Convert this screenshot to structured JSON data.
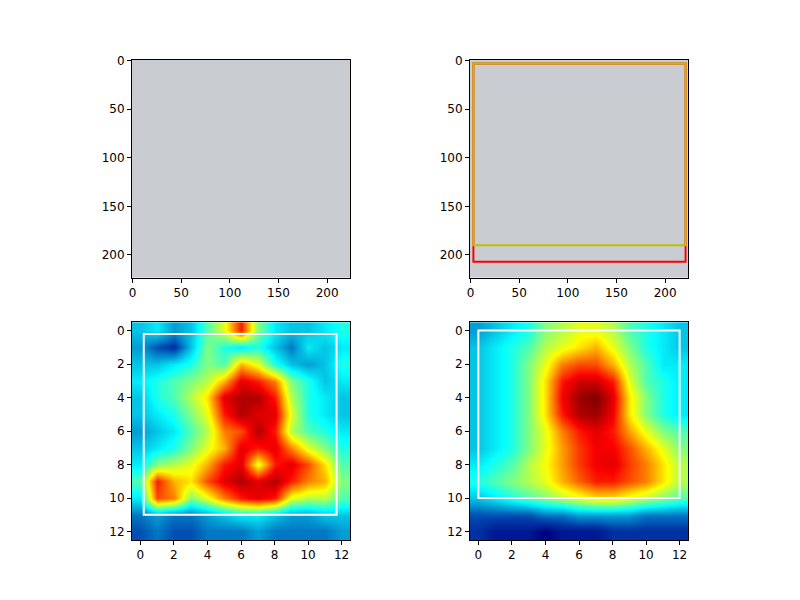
{
  "chart_data": [
    {
      "type": "image",
      "xlim": [
        -0.5,
        223.5
      ],
      "ylim": [
        223.5,
        -0.5
      ],
      "xticks": [
        0,
        50,
        100,
        150,
        200
      ],
      "yticks": [
        0,
        50,
        100,
        150,
        200
      ],
      "color": "#c9ccd0"
    },
    {
      "type": "image",
      "xlim": [
        -0.5,
        223.5
      ],
      "ylim": [
        223.5,
        -0.5
      ],
      "xticks": [
        0,
        50,
        100,
        150,
        200
      ],
      "yticks": [
        0,
        50,
        100,
        150,
        200
      ],
      "color": "#c9ccd0",
      "boxes": [
        {
          "color": "#ff0000",
          "x": [
            3,
            221
          ],
          "y": [
            3,
            207
          ]
        },
        {
          "color": "#bfbf00",
          "x": [
            3,
            221
          ],
          "y": [
            3,
            190
          ]
        }
      ]
    },
    {
      "type": "heatmap",
      "xlim": [
        -0.5,
        12.5
      ],
      "ylim": [
        12.5,
        -0.5
      ],
      "xticks": [
        0,
        2,
        4,
        6,
        8,
        10,
        12
      ],
      "yticks": [
        0,
        2,
        4,
        6,
        8,
        10,
        12
      ],
      "color": "Jet",
      "zlim": [
        0,
        1
      ],
      "cells": [
        [
          0.3,
          0.35,
          0.25,
          0.3,
          0.45,
          0.6,
          0.85,
          0.5,
          0.35,
          0.3,
          0.3,
          0.35,
          0.4
        ],
        [
          0.25,
          0.15,
          0.1,
          0.3,
          0.5,
          0.4,
          0.35,
          0.4,
          0.3,
          0.2,
          0.35,
          0.3,
          0.35
        ],
        [
          0.3,
          0.3,
          0.35,
          0.4,
          0.5,
          0.45,
          0.7,
          0.6,
          0.4,
          0.3,
          0.25,
          0.3,
          0.4
        ],
        [
          0.35,
          0.4,
          0.45,
          0.5,
          0.55,
          0.7,
          0.9,
          0.85,
          0.75,
          0.5,
          0.4,
          0.3,
          0.35
        ],
        [
          0.3,
          0.4,
          0.45,
          0.55,
          0.65,
          0.9,
          0.95,
          0.95,
          0.85,
          0.55,
          0.4,
          0.35,
          0.3
        ],
        [
          0.3,
          0.35,
          0.4,
          0.5,
          0.6,
          0.85,
          0.95,
          0.9,
          0.9,
          0.6,
          0.4,
          0.35,
          0.3
        ],
        [
          0.25,
          0.3,
          0.35,
          0.45,
          0.55,
          0.75,
          0.8,
          0.95,
          0.85,
          0.55,
          0.45,
          0.4,
          0.35
        ],
        [
          0.3,
          0.35,
          0.4,
          0.5,
          0.6,
          0.7,
          0.9,
          0.85,
          0.9,
          0.75,
          0.6,
          0.5,
          0.4
        ],
        [
          0.35,
          0.5,
          0.55,
          0.6,
          0.7,
          0.85,
          0.9,
          0.6,
          0.85,
          0.9,
          0.8,
          0.65,
          0.45
        ],
        [
          0.45,
          0.85,
          0.7,
          0.65,
          0.8,
          0.9,
          0.95,
          0.9,
          0.95,
          0.85,
          0.75,
          0.7,
          0.5
        ],
        [
          0.35,
          0.8,
          0.75,
          0.5,
          0.6,
          0.75,
          0.85,
          0.9,
          0.85,
          0.6,
          0.55,
          0.55,
          0.45
        ],
        [
          0.2,
          0.25,
          0.2,
          0.2,
          0.25,
          0.3,
          0.35,
          0.35,
          0.3,
          0.25,
          0.25,
          0.3,
          0.3
        ],
        [
          0.15,
          0.2,
          0.15,
          0.15,
          0.2,
          0.2,
          0.2,
          0.25,
          0.2,
          0.2,
          0.2,
          0.2,
          0.25
        ]
      ],
      "boxes": [
        {
          "color": "#ffffff",
          "x": [
            0.2,
            11.7
          ],
          "y": [
            0.2,
            11
          ]
        }
      ]
    },
    {
      "type": "heatmap",
      "xlim": [
        -0.5,
        12.5
      ],
      "ylim": [
        12.5,
        -0.5
      ],
      "xticks": [
        0,
        2,
        4,
        6,
        8,
        10,
        12
      ],
      "yticks": [
        0,
        2,
        4,
        6,
        8,
        10,
        12
      ],
      "color": "Jet",
      "zlim": [
        0,
        1
      ],
      "cells": [
        [
          0.25,
          0.3,
          0.35,
          0.4,
          0.5,
          0.55,
          0.6,
          0.6,
          0.55,
          0.45,
          0.4,
          0.35,
          0.3
        ],
        [
          0.3,
          0.35,
          0.4,
          0.45,
          0.55,
          0.6,
          0.65,
          0.7,
          0.6,
          0.5,
          0.4,
          0.35,
          0.3
        ],
        [
          0.3,
          0.35,
          0.4,
          0.5,
          0.6,
          0.75,
          0.8,
          0.8,
          0.7,
          0.55,
          0.45,
          0.35,
          0.35
        ],
        [
          0.3,
          0.35,
          0.4,
          0.5,
          0.65,
          0.85,
          0.92,
          0.92,
          0.85,
          0.6,
          0.45,
          0.4,
          0.35
        ],
        [
          0.3,
          0.35,
          0.4,
          0.5,
          0.65,
          0.88,
          0.97,
          1.0,
          0.9,
          0.65,
          0.5,
          0.4,
          0.35
        ],
        [
          0.3,
          0.35,
          0.4,
          0.5,
          0.65,
          0.85,
          0.95,
          0.97,
          0.88,
          0.65,
          0.5,
          0.4,
          0.35
        ],
        [
          0.3,
          0.35,
          0.4,
          0.5,
          0.6,
          0.75,
          0.85,
          0.9,
          0.85,
          0.72,
          0.6,
          0.5,
          0.45
        ],
        [
          0.3,
          0.35,
          0.4,
          0.5,
          0.6,
          0.72,
          0.82,
          0.88,
          0.88,
          0.8,
          0.7,
          0.6,
          0.5
        ],
        [
          0.35,
          0.4,
          0.45,
          0.55,
          0.62,
          0.72,
          0.82,
          0.88,
          0.9,
          0.82,
          0.75,
          0.65,
          0.55
        ],
        [
          0.4,
          0.45,
          0.5,
          0.55,
          0.6,
          0.7,
          0.78,
          0.85,
          0.85,
          0.8,
          0.75,
          0.65,
          0.55
        ],
        [
          0.3,
          0.35,
          0.4,
          0.45,
          0.5,
          0.55,
          0.6,
          0.65,
          0.65,
          0.6,
          0.55,
          0.5,
          0.45
        ],
        [
          0.15,
          0.15,
          0.15,
          0.15,
          0.2,
          0.2,
          0.25,
          0.25,
          0.25,
          0.25,
          0.2,
          0.2,
          0.2
        ],
        [
          0.1,
          0.05,
          0.05,
          0.05,
          0.0,
          0.05,
          0.05,
          0.05,
          0.1,
          0.1,
          0.1,
          0.1,
          0.1
        ]
      ],
      "boxes": [
        {
          "color": "#ffffff",
          "x": [
            0,
            12
          ],
          "y": [
            0,
            10
          ]
        }
      ]
    }
  ]
}
